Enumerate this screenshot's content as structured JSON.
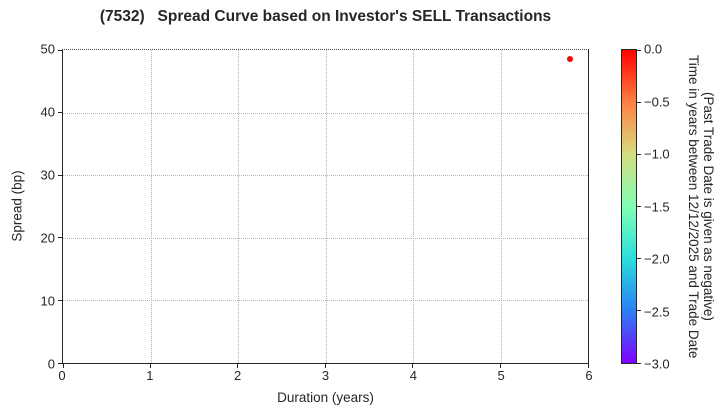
{
  "chart_data": {
    "type": "scatter",
    "title": "(7532)   Spread Curve based on Investor's SELL Transactions",
    "xlabel": "Duration (years)",
    "ylabel": "Spread (bp)",
    "xlim": [
      0,
      6
    ],
    "ylim": [
      0,
      50
    ],
    "x_ticks": [
      0,
      1,
      2,
      3,
      4,
      5,
      6
    ],
    "y_ticks": [
      0,
      10,
      20,
      30,
      40,
      50
    ],
    "grid": "dotted",
    "legend": "none",
    "points": [
      {
        "x": 5.79,
        "y": 48.5,
        "colorbar_value": 0.0,
        "color": "#ee0a00"
      }
    ],
    "colorbar": {
      "label_line1": "Time in years between 12/12/2025 and Trade Date",
      "label_line2": "(Past Trade Date is given as negative)",
      "tick_labels": [
        "0.0",
        "−0.5",
        "−1.0",
        "−1.5",
        "−2.0",
        "−2.5",
        "−3.0"
      ],
      "tick_values": [
        0,
        -0.5,
        -1.0,
        -1.5,
        -2.0,
        -2.5,
        -3.0
      ],
      "vmax": 0.0,
      "vmin": -3.0,
      "colormap": "rainbow_r",
      "gradient_top_to_bottom": [
        "#ff0000",
        "#ff8042",
        "#d5dd80",
        "#80ffb4",
        "#2bdddd",
        "#2b80f6",
        "#8000ff"
      ]
    }
  }
}
